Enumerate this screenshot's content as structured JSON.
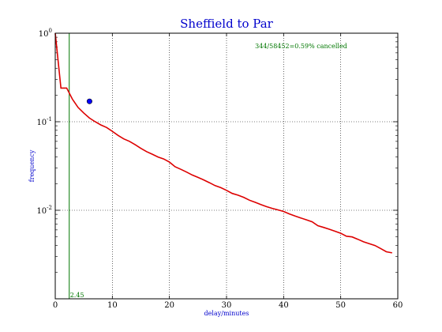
{
  "chart_data": {
    "type": "line",
    "title": "Sheffield to Par",
    "xlabel": "delay/minutes",
    "ylabel": "frequency",
    "xlim": [
      0,
      60
    ],
    "ylim": [
      0.001,
      1
    ],
    "yscale": "log",
    "grid": true,
    "x_ticks": [
      0,
      10,
      20,
      30,
      40,
      50,
      60
    ],
    "y_ticks": [
      {
        "value": 1,
        "base": "10",
        "exp": "0"
      },
      {
        "value": 0.1,
        "base": "10",
        "exp": "-1"
      },
      {
        "value": 0.01,
        "base": "10",
        "exp": "-2"
      }
    ],
    "series": [
      {
        "color": "#dd0000",
        "x": [
          0,
          1,
          2,
          3,
          4,
          5,
          6,
          7,
          8,
          9,
          10,
          11,
          12,
          13,
          14,
          15,
          16,
          17,
          18,
          19,
          20,
          21,
          22,
          23,
          24,
          25,
          26,
          27,
          28,
          29,
          30,
          31,
          32,
          33,
          34,
          35,
          36,
          37,
          38,
          39,
          40,
          41,
          42,
          43,
          44,
          45,
          46,
          47,
          48,
          49,
          50,
          51,
          52,
          53,
          54,
          55,
          56,
          57,
          58,
          59
        ],
        "y": [
          1.0,
          0.24,
          0.24,
          0.18,
          0.145,
          0.125,
          0.11,
          0.1,
          0.092,
          0.086,
          0.078,
          0.07,
          0.064,
          0.06,
          0.055,
          0.05,
          0.046,
          0.043,
          0.04,
          0.038,
          0.035,
          0.031,
          0.029,
          0.027,
          0.025,
          0.0235,
          0.022,
          0.0205,
          0.019,
          0.018,
          0.0168,
          0.0155,
          0.0148,
          0.014,
          0.013,
          0.0123,
          0.0116,
          0.011,
          0.0105,
          0.0101,
          0.0097,
          0.0091,
          0.0086,
          0.0082,
          0.0078,
          0.0074,
          0.0067,
          0.0064,
          0.0061,
          0.0058,
          0.0055,
          0.0051,
          0.005,
          0.0047,
          0.0044,
          0.0042,
          0.004,
          0.0037,
          0.0034,
          0.0033
        ]
      }
    ],
    "point": {
      "x": 6,
      "y": 0.17,
      "color": "#0000ff"
    },
    "vline": {
      "x": 2.45,
      "label": "2.45",
      "color": "#007700"
    },
    "annotation": {
      "text": "344/58452=0.59% cancelled",
      "x": 35,
      "y": 0.68,
      "color": "#007700"
    }
  }
}
